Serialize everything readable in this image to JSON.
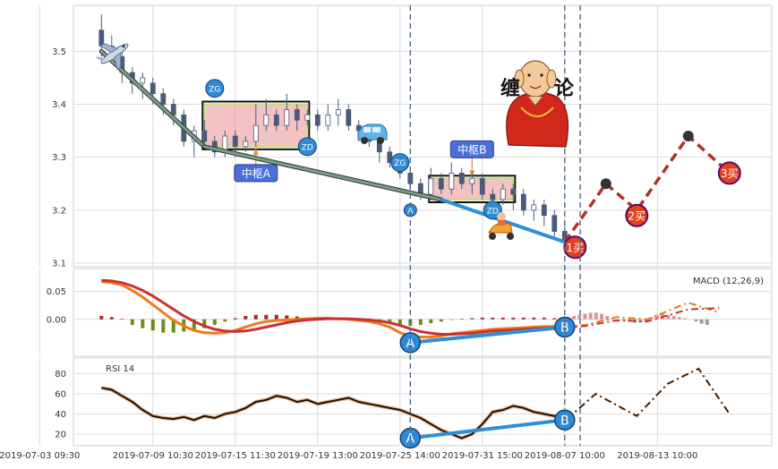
{
  "chart_data": {
    "type": "candlestick",
    "panels": [
      {
        "name": "price",
        "ylim": [
          3.1,
          3.58
        ],
        "yticks": [
          "3.1",
          "3.2",
          "3.3",
          "3.4",
          "3.5"
        ],
        "candles": [
          [
            3.54,
            3.51,
            3.57,
            3.49
          ],
          [
            3.51,
            3.5,
            3.53,
            3.48
          ],
          [
            3.49,
            3.46,
            3.5,
            3.44
          ],
          [
            3.46,
            3.44,
            3.47,
            3.42
          ],
          [
            3.44,
            3.45,
            3.46,
            3.41
          ],
          [
            3.44,
            3.42,
            3.45,
            3.4
          ],
          [
            3.42,
            3.4,
            3.43,
            3.38
          ],
          [
            3.4,
            3.38,
            3.41,
            3.36
          ],
          [
            3.38,
            3.33,
            3.39,
            3.32
          ],
          [
            3.33,
            3.35,
            3.36,
            3.3
          ],
          [
            3.35,
            3.33,
            3.37,
            3.32
          ],
          [
            3.33,
            3.31,
            3.34,
            3.3
          ],
          [
            3.31,
            3.34,
            3.35,
            3.3
          ],
          [
            3.34,
            3.32,
            3.35,
            3.3
          ],
          [
            3.32,
            3.33,
            3.34,
            3.31
          ],
          [
            3.33,
            3.36,
            3.4,
            3.32
          ],
          [
            3.36,
            3.38,
            3.41,
            3.35
          ],
          [
            3.38,
            3.36,
            3.39,
            3.35
          ],
          [
            3.36,
            3.39,
            3.42,
            3.35
          ],
          [
            3.39,
            3.37,
            3.4,
            3.35
          ],
          [
            3.37,
            3.38,
            3.39,
            3.36
          ],
          [
            3.38,
            3.36,
            3.39,
            3.35
          ],
          [
            3.36,
            3.38,
            3.4,
            3.35
          ],
          [
            3.38,
            3.39,
            3.41,
            3.36
          ],
          [
            3.39,
            3.36,
            3.4,
            3.35
          ],
          [
            3.36,
            3.35,
            3.37,
            3.33
          ],
          [
            3.35,
            3.33,
            3.36,
            3.32
          ],
          [
            3.33,
            3.31,
            3.34,
            3.29
          ],
          [
            3.31,
            3.29,
            3.32,
            3.28
          ],
          [
            3.29,
            3.27,
            3.3,
            3.26
          ],
          [
            3.27,
            3.25,
            3.28,
            3.24
          ],
          [
            3.25,
            3.23,
            3.26,
            3.22
          ],
          [
            3.23,
            3.26,
            3.28,
            3.22
          ],
          [
            3.26,
            3.24,
            3.27,
            3.23
          ],
          [
            3.24,
            3.27,
            3.29,
            3.23
          ],
          [
            3.27,
            3.25,
            3.28,
            3.24
          ],
          [
            3.25,
            3.26,
            3.27,
            3.23
          ],
          [
            3.26,
            3.23,
            3.27,
            3.22
          ],
          [
            3.23,
            3.22,
            3.24,
            3.2
          ],
          [
            3.22,
            3.24,
            3.25,
            3.21
          ],
          [
            3.24,
            3.23,
            3.25,
            3.2
          ],
          [
            3.23,
            3.2,
            3.24,
            3.19
          ],
          [
            3.2,
            3.21,
            3.22,
            3.18
          ],
          [
            3.21,
            3.19,
            3.22,
            3.17
          ],
          [
            3.19,
            3.16,
            3.2,
            3.15
          ],
          [
            3.16,
            3.14,
            3.17,
            3.13
          ]
        ],
        "bi_strokes": [
          {
            "x": [
              0,
              10
            ],
            "y": [
              3.5,
              3.32
            ]
          },
          {
            "x": [
              10,
              33
            ],
            "y": [
              3.32,
              3.22
            ]
          },
          {
            "x": [
              33,
              45
            ],
            "y": [
              3.22,
              3.14
            ]
          }
        ],
        "zhongshu": [
          {
            "label": "中枢A",
            "x": [
              10,
              20
            ],
            "y": [
              3.32,
              3.4
            ]
          },
          {
            "label": "中枢B",
            "x": [
              32,
              40
            ],
            "y": [
              3.22,
              3.26
            ]
          }
        ],
        "forecast": {
          "x": [
            45,
            49,
            52,
            57,
            61
          ],
          "y": [
            3.14,
            3.25,
            3.2,
            3.34,
            3.27
          ]
        },
        "markers": [
          {
            "label": "ZG",
            "x": 11,
            "y": 3.43,
            "color": "#2e8ad6"
          },
          {
            "label": "ZD",
            "x": 20,
            "y": 3.32,
            "color": "#2e8ad6"
          },
          {
            "label": "ZG",
            "x": 29,
            "y": 3.29,
            "color": "#2e8ad6"
          },
          {
            "label": "ZD",
            "x": 38,
            "y": 3.2,
            "color": "#2e8ad6"
          },
          {
            "label": "A",
            "x": 30,
            "y": 3.2,
            "color": "#2e8ad6"
          },
          {
            "label": "1买",
            "x": 46,
            "y": 3.13,
            "color": "#e0421f"
          },
          {
            "label": "2买",
            "x": 52,
            "y": 3.19,
            "color": "#e0421f"
          },
          {
            "label": "3买",
            "x": 61,
            "y": 3.27,
            "color": "#e0421f"
          }
        ],
        "title_text": [
          "缠",
          "论"
        ]
      },
      {
        "name": "macd",
        "label": "MACD (12,26,9)",
        "ylim": [
          -0.06,
          0.085
        ],
        "yticks": [
          "0.00",
          "0.05"
        ],
        "dif": [
          0.068,
          0.066,
          0.062,
          0.052,
          0.04,
          0.026,
          0.012,
          -0.002,
          -0.012,
          -0.02,
          -0.024,
          -0.025,
          -0.024,
          -0.02,
          -0.014,
          -0.008,
          -0.004,
          -0.002,
          -0.001,
          0.0,
          0.001,
          0.002,
          0.002,
          0.001,
          0.0,
          -0.002,
          -0.004,
          -0.008,
          -0.014,
          -0.024,
          -0.03,
          -0.032,
          -0.032,
          -0.03,
          -0.026,
          -0.024,
          -0.022,
          -0.02,
          -0.018,
          -0.017,
          -0.016,
          -0.015,
          -0.014,
          -0.013,
          -0.013,
          -0.014
        ],
        "dea": [
          0.07,
          0.069,
          0.066,
          0.06,
          0.052,
          0.042,
          0.03,
          0.018,
          0.006,
          -0.004,
          -0.012,
          -0.018,
          -0.021,
          -0.022,
          -0.021,
          -0.018,
          -0.014,
          -0.01,
          -0.006,
          -0.003,
          -0.001,
          0.0,
          0.001,
          0.001,
          0.001,
          0.0,
          -0.001,
          -0.003,
          -0.006,
          -0.011,
          -0.017,
          -0.022,
          -0.025,
          -0.027,
          -0.027,
          -0.026,
          -0.025,
          -0.023,
          -0.021,
          -0.02,
          -0.019,
          -0.018,
          -0.017,
          -0.016,
          -0.015,
          -0.015
        ],
        "hist": [
          0.006,
          0.004,
          0.001,
          -0.01,
          -0.016,
          -0.02,
          -0.024,
          -0.024,
          -0.022,
          -0.02,
          -0.016,
          -0.01,
          -0.004,
          0.002,
          0.006,
          0.008,
          0.008,
          0.008,
          0.007,
          0.005,
          0.003,
          0.002,
          0.001,
          0.0,
          0.0,
          -0.001,
          -0.002,
          -0.004,
          -0.007,
          -0.01,
          -0.012,
          -0.01,
          -0.007,
          -0.004,
          -0.001,
          0.001,
          0.002,
          0.003,
          0.003,
          0.003,
          0.003,
          0.003,
          0.003,
          0.003,
          0.002,
          0.001
        ],
        "forecast_dif": {
          "x": [
            45,
            47,
            50,
            53,
            57,
            60
          ],
          "y": [
            -0.014,
            -0.01,
            0.004,
            0.0,
            0.03,
            0.012
          ]
        },
        "forecast_dea": {
          "x": [
            45,
            47,
            50,
            53,
            57,
            60
          ],
          "y": [
            -0.015,
            -0.012,
            -0.002,
            -0.004,
            0.018,
            0.02
          ]
        },
        "forecast_hist": [
          0.004,
          0.006,
          0.008,
          0.01,
          0.012,
          0.012,
          0.01,
          0.006,
          0.002,
          0.0,
          -0.002,
          -0.004,
          -0.006,
          -0.006,
          -0.004,
          0.004,
          0.008,
          0.01,
          0.008,
          0.006,
          0.004,
          0.002,
          0.0,
          -0.004,
          -0.008,
          -0.01
        ],
        "divergence": {
          "labels": [
            "A",
            "B"
          ],
          "x": [
            30,
            45
          ],
          "y": [
            -0.042,
            -0.014
          ]
        }
      },
      {
        "name": "rsi",
        "label": "RSI 14",
        "ylim": [
          12,
          92
        ],
        "yticks": [
          "20",
          "40",
          "60",
          "80"
        ],
        "values": [
          66,
          64,
          58,
          52,
          44,
          38,
          36,
          35,
          37,
          34,
          38,
          36,
          40,
          42,
          46,
          52,
          54,
          58,
          56,
          52,
          54,
          50,
          52,
          54,
          56,
          52,
          50,
          48,
          46,
          44,
          40,
          36,
          30,
          24,
          20,
          16,
          20,
          30,
          42,
          44,
          48,
          46,
          42,
          40,
          38,
          40
        ],
        "forecast": {
          "x": [
            45,
            46,
            48,
            52,
            55,
            58,
            61
          ],
          "y": [
            40,
            42,
            60,
            38,
            70,
            85,
            40
          ]
        },
        "divergence": {
          "labels": [
            "A",
            "B"
          ],
          "x": [
            30,
            45
          ],
          "y": [
            16,
            34
          ]
        }
      }
    ],
    "vlines_x": [
      30,
      45,
      46.5
    ],
    "xtick_labels": [
      "2019-07-03 09:30",
      "2019-07-09 10:30",
      "2019-07-15 11:30",
      "2019-07-19 13:00",
      "2019-07-25 14:00",
      "2019-07-31 15:00",
      "2019-08-07 10:00",
      "2019-08-13 10:00"
    ],
    "xtick_positions": [
      -6,
      5,
      13,
      21,
      29,
      37,
      45,
      54
    ]
  }
}
